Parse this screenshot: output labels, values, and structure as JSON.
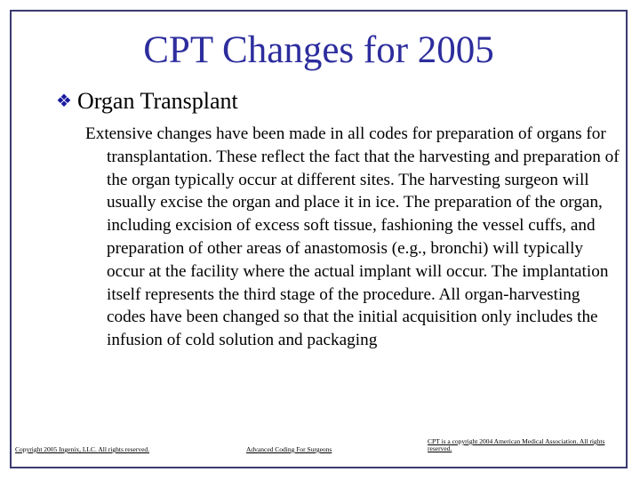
{
  "slide": {
    "title": "CPT Changes for 2005",
    "bullet": {
      "icon": "diamond-bullet-icon",
      "text": "Organ Transplant"
    },
    "body": "Extensive changes have been made in all codes for preparation of organs for transplantation. These reflect the fact that the harvesting and preparation of the organ typically occur at different sites. The harvesting surgeon will usually excise the organ and place it in ice. The preparation of the organ, including excision of excess soft tissue, fashioning the vessel cuffs, and preparation of other areas of anastomosis (e.g., bronchi) will typically occur at the facility where the actual implant will occur. The implantation itself represents the third stage of the procedure. All organ-harvesting codes have been changed so that the initial acquisition only includes the infusion of cold solution and packaging"
  },
  "footer": {
    "left": "Copyright 2005 Ingenix, LLC. All rights reserved.",
    "center": "Advanced Coding For Surgeons",
    "right": "CPT is a copyright 2004 American Medical Association. All rights reserved."
  },
  "colors": {
    "title": "#2d2d9e",
    "bullet": "#1a1aa0",
    "border": "#3a3a70"
  }
}
